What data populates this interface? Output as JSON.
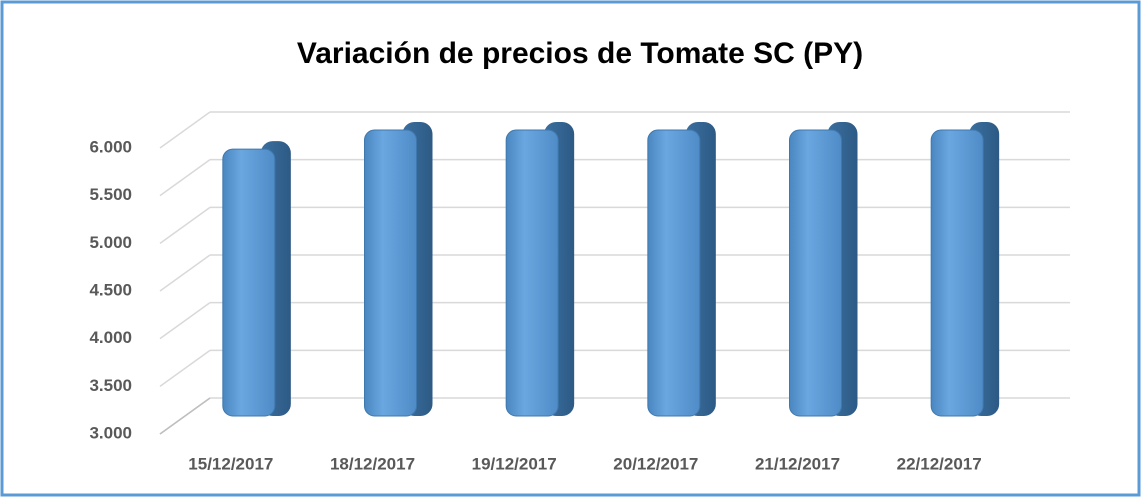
{
  "chart_data": {
    "type": "bar3d",
    "title": "Variación de precios de Tomate SC (PY)",
    "categories": [
      "15/12/2017",
      "18/12/2017",
      "19/12/2017",
      "20/12/2017",
      "21/12/2017",
      "22/12/2017"
    ],
    "values": [
      5800,
      6000,
      6000,
      6000,
      6000,
      6000
    ],
    "color": "#5b9bd5",
    "ylim": [
      3000,
      6000
    ],
    "yticks": [
      {
        "value": 3000,
        "label": "3.000"
      },
      {
        "value": 3500,
        "label": "3.500"
      },
      {
        "value": 4000,
        "label": "4.000"
      },
      {
        "value": 4500,
        "label": "4.500"
      },
      {
        "value": 5000,
        "label": "5.000"
      },
      {
        "value": 5500,
        "label": "5.500"
      },
      {
        "value": 6000,
        "label": "6.000"
      }
    ],
    "grid": true
  }
}
